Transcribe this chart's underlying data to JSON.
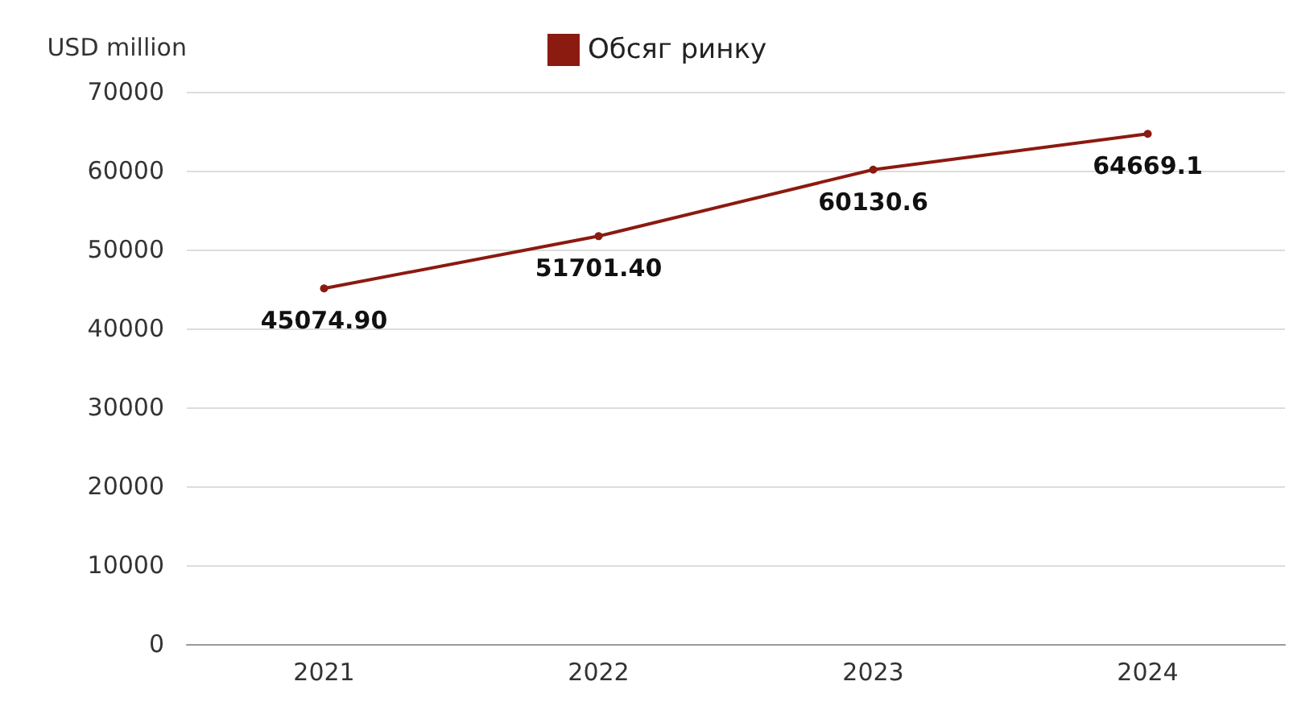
{
  "chart_data": {
    "type": "line",
    "ylabel": "USD million",
    "categories": [
      "2021",
      "2022",
      "2023",
      "2024"
    ],
    "series": [
      {
        "name": "Обсяг ринку",
        "color": "#8b1a10",
        "values": [
          45074.9,
          51701.4,
          60130.6,
          64669.1
        ],
        "value_labels": [
          "45074.90",
          "51701.40",
          "60130.6",
          "64669.1"
        ]
      }
    ],
    "ylim": [
      0,
      70000
    ],
    "yticks": [
      0,
      10000,
      20000,
      30000,
      40000,
      50000,
      60000,
      70000
    ],
    "grid": "y",
    "legend": "top",
    "marker": "circle",
    "line_style": "solid"
  }
}
